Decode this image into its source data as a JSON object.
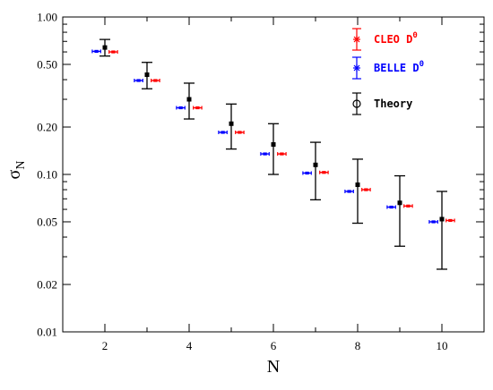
{
  "colors": {
    "CLEO D0": "#ff0000",
    "BELLE D0": "#0000ff",
    "Theory": "#000000"
  },
  "chart_data": {
    "type": "scatter",
    "xlabel": "N",
    "ylabel": "σ",
    "ylabel_sub": "N",
    "xlim": [
      1,
      11
    ],
    "ylim": [
      0.01,
      1.0
    ],
    "yscale": "log",
    "grid": false,
    "xticks": [
      2,
      4,
      6,
      8,
      10
    ],
    "yticks": [
      0.01,
      0.02,
      0.05,
      0.1,
      0.2,
      0.5,
      1.0
    ],
    "ytick_labels": [
      "0.01",
      "0.02",
      "0.05",
      "0.10",
      "0.20",
      "0.50",
      "1.00"
    ],
    "legend_position": "top-right",
    "series": [
      {
        "name": "CLEO D",
        "sup": "0",
        "marker": "star",
        "x_offset": 0.2,
        "x": [
          2,
          3,
          4,
          5,
          6,
          7,
          8,
          9,
          10
        ],
        "y": [
          0.6,
          0.395,
          0.265,
          0.185,
          0.135,
          0.103,
          0.08,
          0.063,
          0.051
        ],
        "xerr": 0.1
      },
      {
        "name": "BELLE D",
        "sup": "0",
        "marker": "star",
        "x_offset": -0.2,
        "x": [
          2,
          3,
          4,
          5,
          6,
          7,
          8,
          9,
          10
        ],
        "y": [
          0.605,
          0.395,
          0.265,
          0.185,
          0.135,
          0.102,
          0.078,
          0.062,
          0.05
        ],
        "xerr": 0.1
      },
      {
        "name": "Theory",
        "marker": "circle",
        "x_offset": 0,
        "x": [
          2,
          3,
          4,
          5,
          6,
          7,
          8,
          9,
          10
        ],
        "y": [
          0.64,
          0.43,
          0.3,
          0.21,
          0.155,
          0.115,
          0.086,
          0.066,
          0.052
        ],
        "yerr_low": [
          0.565,
          0.35,
          0.225,
          0.145,
          0.1,
          0.069,
          0.049,
          0.035,
          0.025
        ],
        "yerr_high": [
          0.72,
          0.515,
          0.38,
          0.28,
          0.21,
          0.16,
          0.125,
          0.098,
          0.078
        ]
      }
    ]
  }
}
